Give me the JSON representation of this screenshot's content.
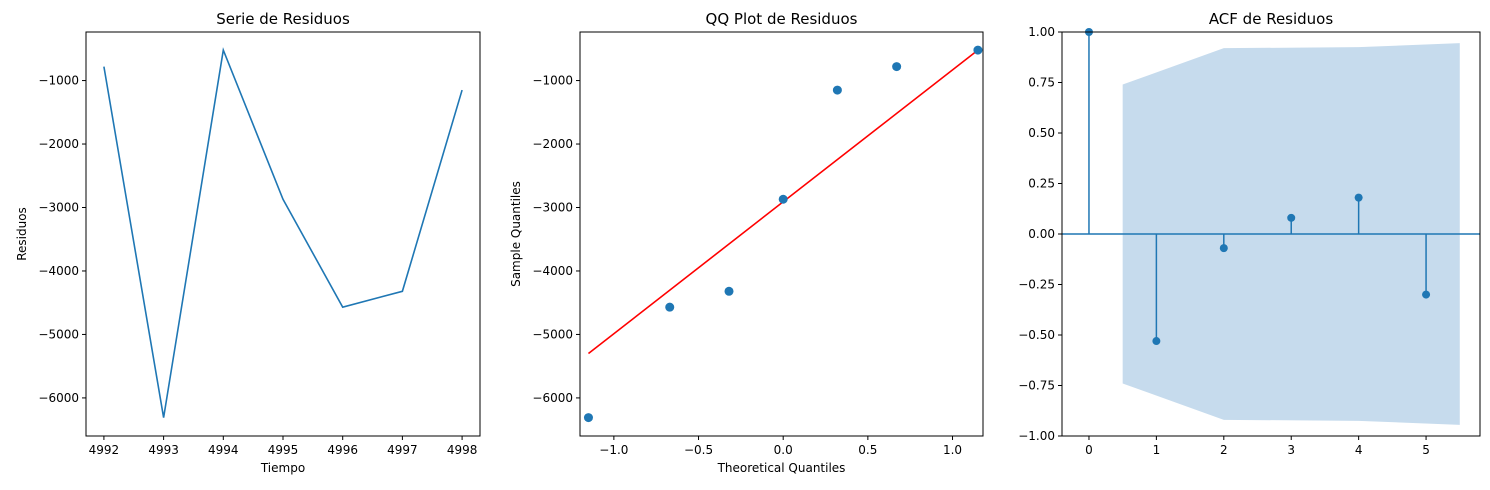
{
  "chart_data": [
    {
      "type": "line",
      "title": "Serie de Residuos",
      "xlabel": "Tiempo",
      "ylabel": "Residuos",
      "x": [
        4992,
        4993,
        4994,
        4995,
        4996,
        4997,
        4998
      ],
      "series": [
        {
          "values": [
            -780,
            -6310,
            -520,
            -2870,
            -4570,
            -4320,
            -1150
          ]
        }
      ],
      "xlim": [
        4991.7,
        4998.3
      ],
      "ylim": [
        -6600,
        -235
      ],
      "xticks": [
        4992,
        4993,
        4994,
        4995,
        4996,
        4997,
        4998
      ],
      "yticks": [
        -6000,
        -5000,
        -4000,
        -3000,
        -2000,
        -1000
      ],
      "ytick_labels": [
        "−6000",
        "−5000",
        "−4000",
        "−3000",
        "−2000",
        "−1000"
      ],
      "color": "#1f77b4",
      "grid": false
    },
    {
      "type": "scatter",
      "title": "QQ Plot de Residuos",
      "xlabel": "Theoretical Quantiles",
      "ylabel": "Sample Quantiles",
      "points": [
        {
          "x": -1.15,
          "y": -6310
        },
        {
          "x": -0.67,
          "y": -4570
        },
        {
          "x": -0.32,
          "y": -4320
        },
        {
          "x": 0.0,
          "y": -2870
        },
        {
          "x": 0.32,
          "y": -1150
        },
        {
          "x": 0.67,
          "y": -780
        },
        {
          "x": 1.15,
          "y": -520
        }
      ],
      "reference_line": {
        "x": [
          -1.15,
          1.15
        ],
        "y": [
          -5300,
          -520
        ],
        "color": "#ff0000"
      },
      "xlim": [
        -1.2,
        1.18
      ],
      "ylim": [
        -6600,
        -235
      ],
      "xticks": [
        -1.0,
        -0.5,
        0.0,
        0.5,
        1.0
      ],
      "xtick_labels": [
        "−1.0",
        "−0.5",
        "0.0",
        "0.5",
        "1.0"
      ],
      "yticks": [
        -6000,
        -5000,
        -4000,
        -3000,
        -2000,
        -1000
      ],
      "ytick_labels": [
        "−6000",
        "−5000",
        "−4000",
        "−3000",
        "−2000",
        "−1000"
      ],
      "color": "#1f77b4",
      "grid": false
    },
    {
      "type": "stem",
      "title": "ACF de Residuos",
      "xlabel": "",
      "ylabel": "",
      "lags": [
        0,
        1,
        2,
        3,
        4,
        5
      ],
      "values": [
        1.0,
        -0.53,
        -0.07,
        0.08,
        0.18,
        -0.3
      ],
      "confidence_band": {
        "x": [
          0.5,
          2,
          4,
          5.5
        ],
        "upper": [
          0.74,
          0.92,
          0.925,
          0.945
        ],
        "lower": [
          -0.74,
          -0.92,
          -0.925,
          -0.945
        ],
        "color": "#c6dbed"
      },
      "xlim": [
        -0.4,
        5.8
      ],
      "ylim": [
        -1.0,
        1.0
      ],
      "xticks": [
        0,
        1,
        2,
        3,
        4,
        5
      ],
      "yticks": [
        -1.0,
        -0.75,
        -0.5,
        -0.25,
        0.0,
        0.25,
        0.5,
        0.75,
        1.0
      ],
      "ytick_labels": [
        "−1.00",
        "−0.75",
        "−0.50",
        "−0.25",
        "0.00",
        "0.25",
        "0.50",
        "0.75",
        "1.00"
      ],
      "color": "#1f77b4",
      "grid": false
    }
  ]
}
